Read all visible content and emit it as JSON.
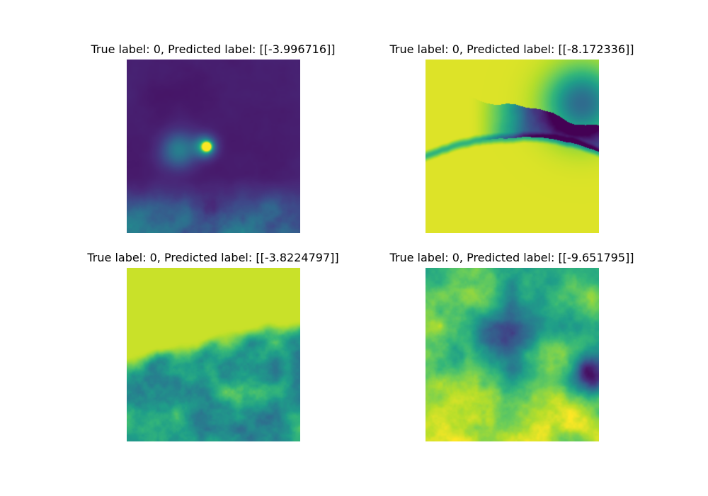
{
  "colormap": {
    "name": "viridis",
    "stops": [
      "#440154",
      "#482878",
      "#3e4989",
      "#31688e",
      "#26828e",
      "#1f9e89",
      "#35b779",
      "#6ece58",
      "#b5de2b",
      "#fde725"
    ]
  },
  "panels": [
    {
      "title": "True label: 0, Predicted label: [[-3.996716]]",
      "pattern": "dark-with-bright-streak"
    },
    {
      "title": "True label: 0, Predicted label: [[-8.172336]]",
      "pattern": "bright-with-dark-channel"
    },
    {
      "title": "True label: 0, Predicted label: [[-3.8224797]]",
      "pattern": "bright-top-mottled-bottom"
    },
    {
      "title": "True label: 0, Predicted label: [[-9.651795]]",
      "pattern": "mottled-with-dark-band"
    }
  ]
}
